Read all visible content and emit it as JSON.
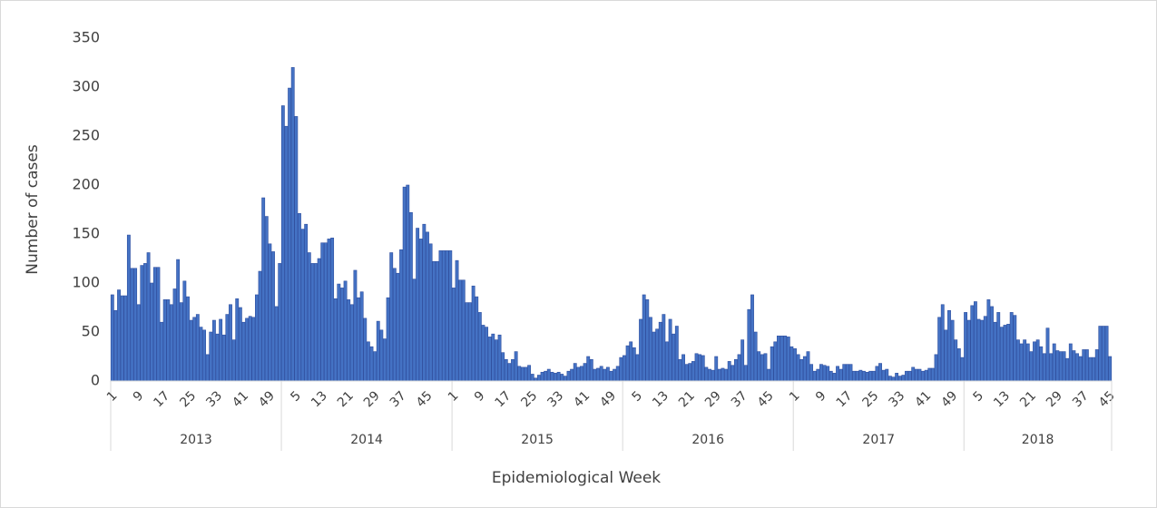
{
  "chart_data": {
    "type": "bar",
    "y_label": "Number of cases",
    "x_label": "Epidemiological Week",
    "color": "#4472c4",
    "ylim": [
      0,
      350
    ],
    "yticks": [
      0,
      50,
      100,
      150,
      200,
      250,
      300,
      350
    ],
    "groups": [
      {
        "label": "2013",
        "categories": [
          1,
          null,
          null,
          null,
          null,
          null,
          null,
          null,
          9,
          null,
          null,
          null,
          null,
          null,
          null,
          null,
          17,
          null,
          null,
          null,
          null,
          null,
          null,
          null,
          25,
          null,
          null,
          null,
          null,
          null,
          null,
          null,
          33,
          null,
          null,
          null,
          null,
          null,
          null,
          null,
          41,
          null,
          null,
          null,
          null,
          null,
          null,
          null,
          49,
          null,
          null,
          null
        ],
        "values": [
          88,
          72,
          93,
          87,
          87,
          149,
          115,
          115,
          78,
          118,
          120,
          131,
          100,
          116,
          116,
          60,
          83,
          83,
          78,
          94,
          124,
          80,
          102,
          86,
          62,
          65,
          68,
          55,
          52,
          27,
          50,
          62,
          48,
          63,
          47,
          68,
          78,
          42,
          84,
          75,
          60,
          64,
          66,
          65,
          88,
          112,
          187,
          168,
          140,
          132,
          76,
          120
        ]
      },
      {
        "label": "2014",
        "categories": [
          null,
          null,
          null,
          null,
          5,
          null,
          null,
          null,
          null,
          null,
          null,
          null,
          13,
          null,
          null,
          null,
          null,
          null,
          null,
          null,
          21,
          null,
          null,
          null,
          null,
          null,
          null,
          null,
          29,
          null,
          null,
          null,
          null,
          null,
          null,
          null,
          37,
          null,
          null,
          null,
          null,
          null,
          null,
          null,
          45,
          null,
          null,
          null,
          null,
          null,
          null,
          null
        ],
        "values": [
          281,
          260,
          299,
          320,
          270,
          171,
          155,
          160,
          131,
          120,
          120,
          125,
          141,
          141,
          145,
          146,
          84,
          99,
          95,
          102,
          83,
          78,
          113,
          85,
          91,
          64,
          40,
          35,
          30,
          61,
          52,
          43,
          85,
          131,
          115,
          110,
          134,
          198,
          200,
          172,
          104,
          156,
          145,
          160,
          152,
          140,
          122,
          122,
          133,
          133,
          133,
          133
        ]
      },
      {
        "label": "2015",
        "categories": [
          1,
          null,
          null,
          null,
          null,
          null,
          null,
          null,
          9,
          null,
          null,
          null,
          null,
          null,
          null,
          null,
          17,
          null,
          null,
          null,
          null,
          null,
          null,
          null,
          25,
          null,
          null,
          null,
          null,
          null,
          null,
          null,
          33,
          null,
          null,
          null,
          null,
          null,
          null,
          null,
          41,
          null,
          null,
          null,
          null,
          null,
          null,
          null,
          49,
          null,
          null,
          null
        ],
        "values": [
          95,
          123,
          103,
          103,
          80,
          80,
          97,
          86,
          70,
          57,
          55,
          45,
          48,
          42,
          47,
          29,
          22,
          18,
          22,
          30,
          15,
          14,
          14,
          16,
          7,
          3,
          6,
          9,
          10,
          12,
          9,
          8,
          9,
          7,
          5,
          10,
          12,
          18,
          14,
          15,
          18,
          25,
          22,
          12,
          13,
          15,
          12,
          14,
          10,
          12,
          15,
          24
        ]
      },
      {
        "label": "2016",
        "categories": [
          null,
          null,
          null,
          null,
          5,
          null,
          null,
          null,
          null,
          null,
          null,
          null,
          13,
          null,
          null,
          null,
          null,
          null,
          null,
          null,
          21,
          null,
          null,
          null,
          null,
          null,
          null,
          null,
          29,
          null,
          null,
          null,
          null,
          null,
          null,
          null,
          37,
          null,
          null,
          null,
          null,
          null,
          null,
          null,
          45,
          null,
          null,
          null,
          null,
          null,
          null,
          null
        ],
        "values": [
          26,
          36,
          40,
          34,
          27,
          63,
          88,
          83,
          65,
          50,
          53,
          60,
          68,
          40,
          63,
          48,
          56,
          22,
          27,
          17,
          18,
          20,
          28,
          27,
          26,
          14,
          12,
          11,
          25,
          12,
          13,
          12,
          20,
          16,
          22,
          27,
          42,
          16,
          73,
          88,
          50,
          30,
          27,
          28,
          12,
          35,
          40,
          46,
          46,
          46,
          45,
          35
        ]
      },
      {
        "label": "2017",
        "categories": [
          1,
          null,
          null,
          null,
          null,
          null,
          null,
          null,
          9,
          null,
          null,
          null,
          null,
          null,
          null,
          null,
          17,
          null,
          null,
          null,
          null,
          null,
          null,
          null,
          25,
          null,
          null,
          null,
          null,
          null,
          null,
          null,
          33,
          null,
          null,
          null,
          null,
          null,
          null,
          null,
          41,
          null,
          null,
          null,
          null,
          null,
          null,
          null,
          49,
          null,
          null,
          null
        ],
        "values": [
          33,
          27,
          22,
          25,
          30,
          17,
          10,
          12,
          17,
          16,
          15,
          10,
          8,
          15,
          12,
          17,
          17,
          17,
          10,
          10,
          11,
          10,
          9,
          10,
          10,
          15,
          18,
          11,
          12,
          5,
          4,
          8,
          5,
          6,
          10,
          10,
          14,
          12,
          12,
          10,
          11,
          13,
          13,
          27,
          65,
          78,
          52,
          72,
          62,
          42,
          33,
          24
        ]
      },
      {
        "label": "2018",
        "categories": [
          null,
          null,
          null,
          null,
          5,
          null,
          null,
          null,
          null,
          null,
          null,
          null,
          13,
          null,
          null,
          null,
          null,
          null,
          null,
          null,
          21,
          null,
          null,
          null,
          null,
          null,
          null,
          null,
          29,
          null,
          null,
          null,
          null,
          null,
          null,
          null,
          37,
          null,
          null,
          null,
          null,
          null,
          null,
          null,
          45
        ],
        "values": [
          70,
          62,
          77,
          81,
          63,
          62,
          66,
          83,
          76,
          60,
          70,
          55,
          57,
          58,
          70,
          67,
          42,
          38,
          42,
          38,
          30,
          40,
          42,
          35,
          28,
          54,
          28,
          38,
          31,
          30,
          30,
          23,
          38,
          31,
          28,
          25,
          32,
          32,
          24,
          24,
          32,
          56,
          56,
          56,
          25
        ]
      }
    ]
  }
}
